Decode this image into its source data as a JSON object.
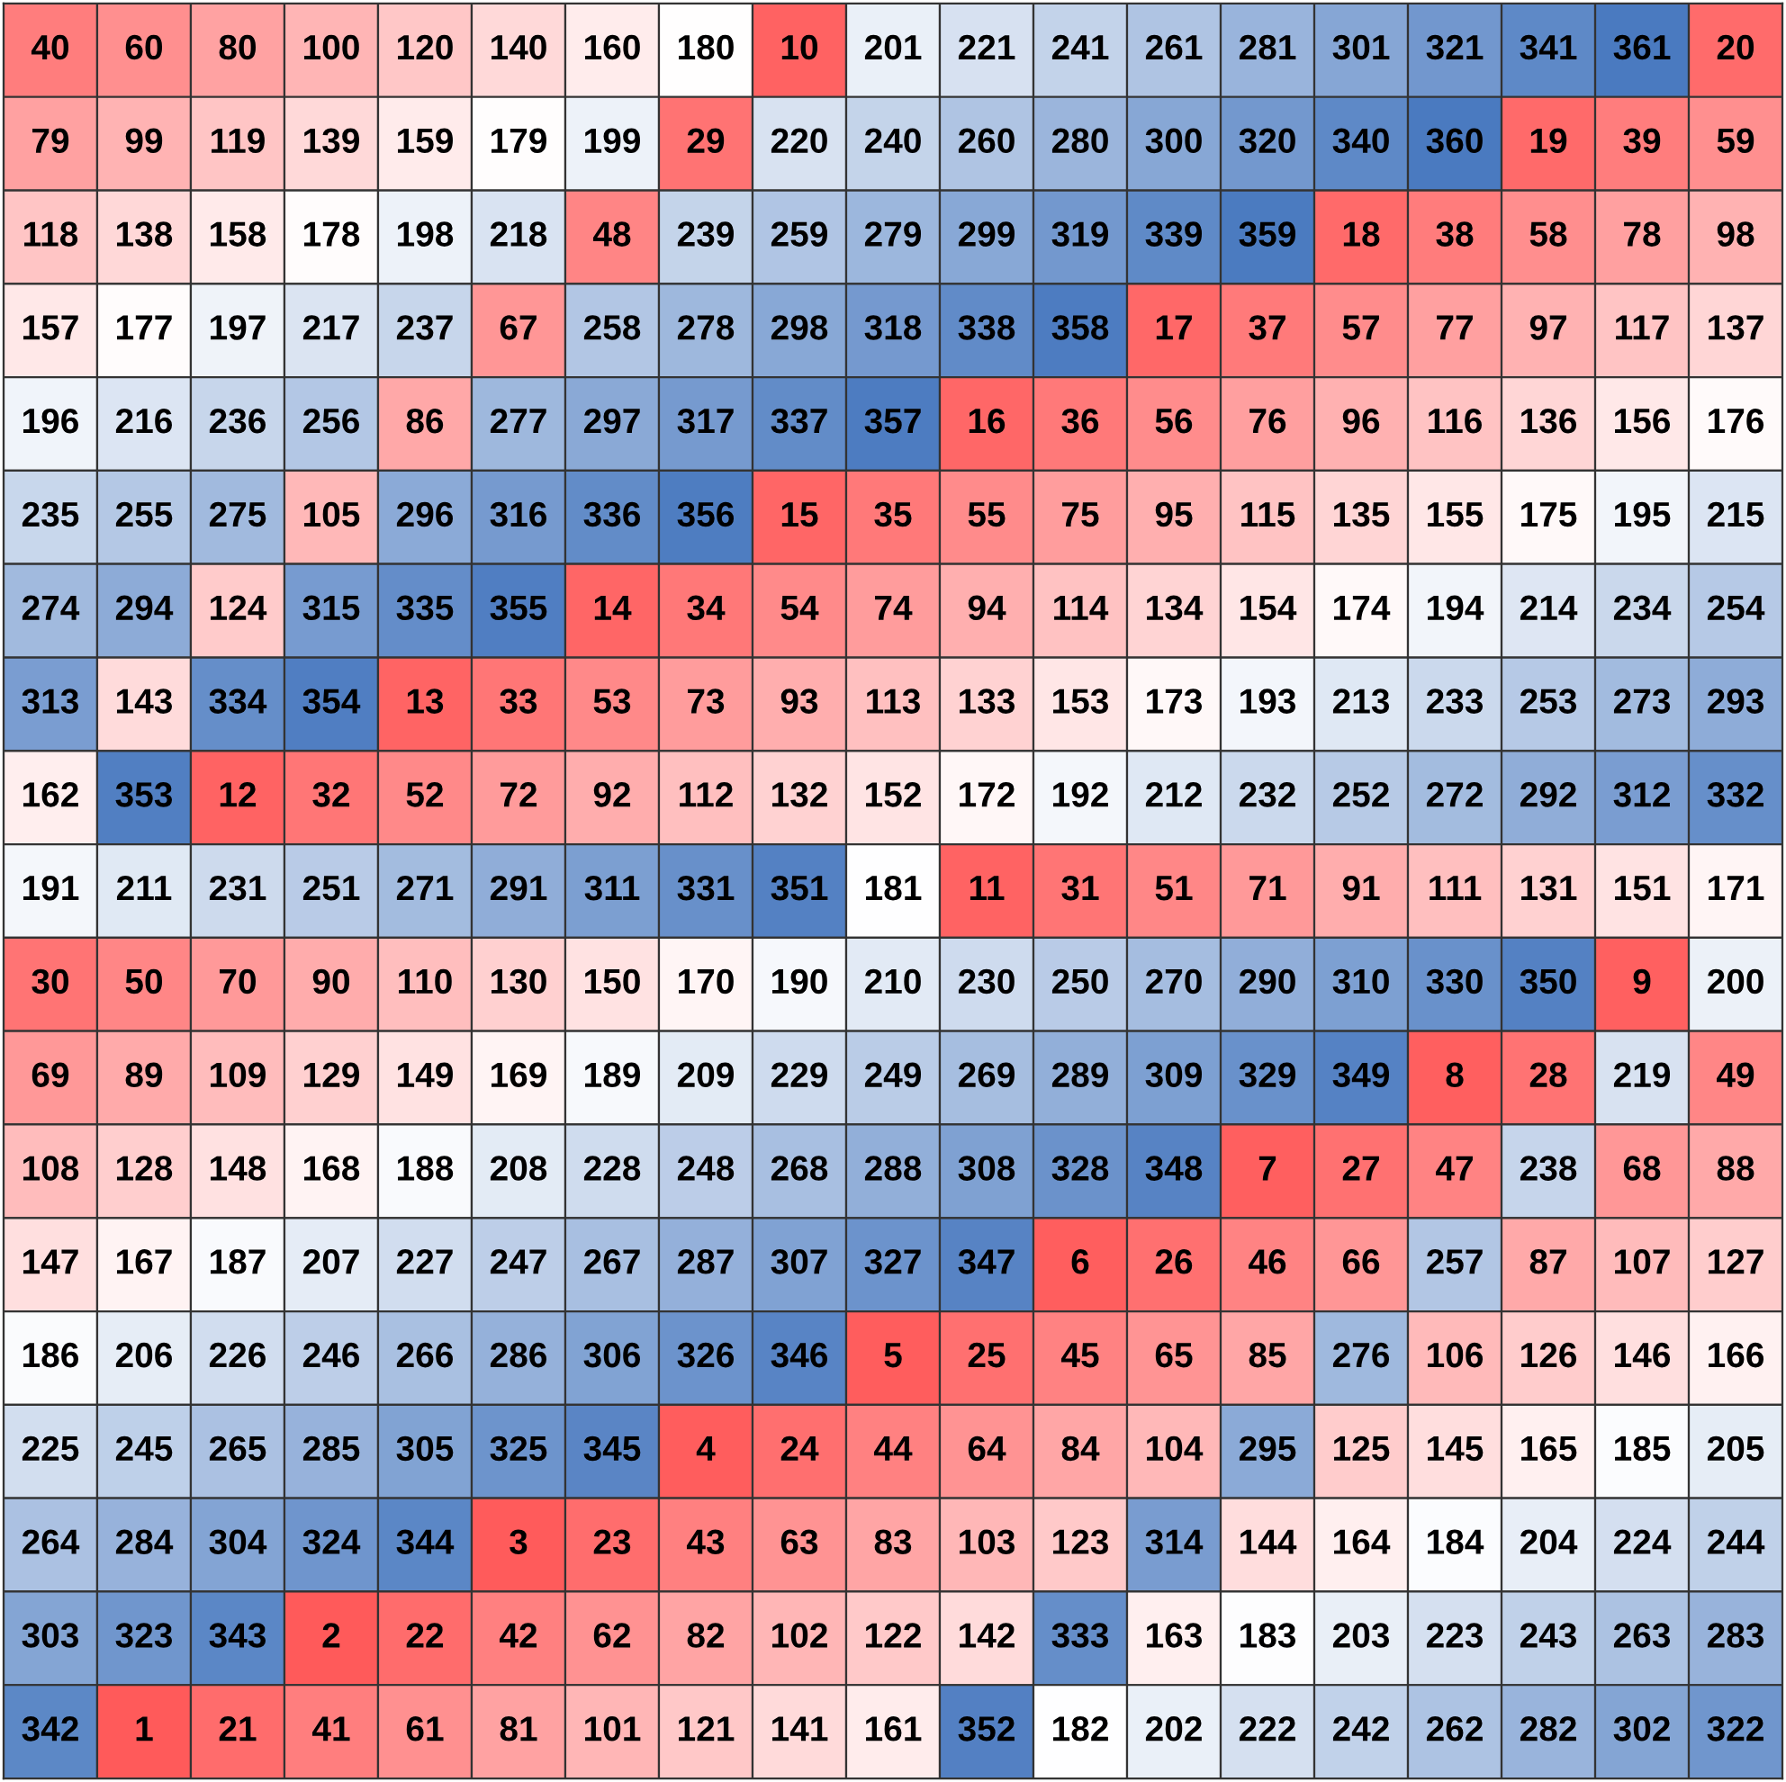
{
  "chart_data": {
    "type": "heatmap",
    "categories": [
      null,
      null,
      null,
      null,
      null,
      null,
      null,
      null,
      null,
      null,
      null,
      null,
      null,
      null,
      null,
      null,
      null,
      null,
      null
    ],
    "y_categories": [
      null,
      null,
      null,
      null,
      null,
      null,
      null,
      null,
      null,
      null,
      null,
      null,
      null,
      null,
      null,
      null,
      null,
      null,
      null
    ],
    "colors": [
      "#ff5a5a",
      "#ffffff",
      "#4a7ac0"
    ],
    "data_labels": true,
    "cells": [
      [
        40,
        60,
        80,
        100,
        120,
        140,
        160,
        180,
        10,
        201,
        221,
        241,
        261,
        281,
        301,
        321,
        341,
        361,
        20
      ],
      [
        79,
        99,
        119,
        139,
        159,
        179,
        199,
        29,
        220,
        240,
        260,
        280,
        300,
        320,
        340,
        360,
        19,
        39,
        59
      ],
      [
        118,
        138,
        158,
        178,
        198,
        218,
        48,
        239,
        259,
        279,
        299,
        319,
        339,
        359,
        18,
        38,
        58,
        78,
        98
      ],
      [
        157,
        177,
        197,
        217,
        237,
        67,
        258,
        278,
        298,
        318,
        338,
        358,
        17,
        37,
        57,
        77,
        97,
        117,
        137
      ],
      [
        196,
        216,
        236,
        256,
        86,
        277,
        297,
        317,
        337,
        357,
        16,
        36,
        56,
        76,
        96,
        116,
        136,
        156,
        176
      ],
      [
        235,
        255,
        275,
        105,
        296,
        316,
        336,
        356,
        15,
        35,
        55,
        75,
        95,
        115,
        135,
        155,
        175,
        195,
        215
      ],
      [
        274,
        294,
        124,
        315,
        335,
        355,
        14,
        34,
        54,
        74,
        94,
        114,
        134,
        154,
        174,
        194,
        214,
        234,
        254
      ],
      [
        313,
        143,
        334,
        354,
        13,
        33,
        53,
        73,
        93,
        113,
        133,
        153,
        173,
        193,
        213,
        233,
        253,
        273,
        293
      ],
      [
        162,
        353,
        12,
        32,
        52,
        72,
        92,
        112,
        132,
        152,
        172,
        192,
        212,
        232,
        252,
        272,
        292,
        312,
        332
      ],
      [
        191,
        211,
        231,
        251,
        271,
        291,
        311,
        331,
        351,
        181,
        11,
        31,
        51,
        71,
        91,
        111,
        131,
        151,
        171
      ],
      [
        30,
        50,
        70,
        90,
        110,
        130,
        150,
        170,
        190,
        210,
        230,
        250,
        270,
        290,
        310,
        330,
        350,
        9,
        200
      ],
      [
        69,
        89,
        109,
        129,
        149,
        169,
        189,
        209,
        229,
        249,
        269,
        289,
        309,
        329,
        349,
        8,
        28,
        219,
        49
      ],
      [
        108,
        128,
        148,
        168,
        188,
        208,
        228,
        248,
        268,
        288,
        308,
        328,
        348,
        7,
        27,
        47,
        238,
        68,
        88
      ],
      [
        147,
        167,
        187,
        207,
        227,
        247,
        267,
        287,
        307,
        327,
        347,
        6,
        26,
        46,
        66,
        257,
        87,
        107,
        127
      ],
      [
        186,
        206,
        226,
        246,
        266,
        286,
        306,
        326,
        346,
        5,
        25,
        45,
        65,
        85,
        276,
        106,
        126,
        146,
        166
      ],
      [
        225,
        245,
        265,
        285,
        305,
        325,
        345,
        4,
        24,
        44,
        64,
        84,
        104,
        295,
        125,
        145,
        165,
        185,
        205
      ],
      [
        264,
        284,
        304,
        324,
        344,
        3,
        23,
        43,
        63,
        83,
        103,
        123,
        314,
        144,
        164,
        184,
        204,
        224,
        244
      ],
      [
        303,
        323,
        343,
        2,
        22,
        42,
        62,
        82,
        102,
        122,
        142,
        333,
        163,
        183,
        203,
        223,
        243,
        263,
        283
      ],
      [
        342,
        1,
        21,
        41,
        61,
        81,
        101,
        121,
        141,
        161,
        352,
        182,
        202,
        222,
        242,
        262,
        282,
        302,
        322
      ]
    ]
  }
}
